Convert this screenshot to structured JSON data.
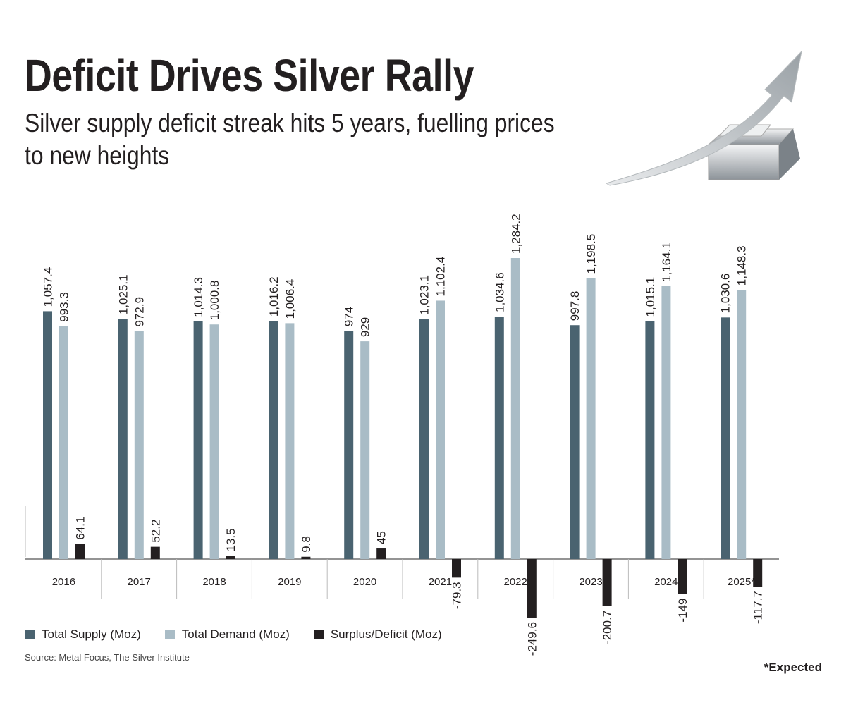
{
  "title": "Deficit Drives Silver Rally",
  "subtitle": "Silver supply deficit streak hits 5 years, fuelling prices to new heights",
  "source": "Source: Metal Focus, The Silver Institute",
  "footnote": "*Expected",
  "illustration": "silver-bars-with-rising-arrow",
  "colors": {
    "supply": "#4a6370",
    "demand": "#a9bcc6",
    "deficit": "#231f20"
  },
  "chart_data": {
    "type": "bar",
    "categories": [
      "2016",
      "2017",
      "2018",
      "2019",
      "2020",
      "2021",
      "2022",
      "2023",
      "2024",
      "2025*"
    ],
    "series": [
      {
        "name": "Total Supply (Moz)",
        "values": [
          1057.4,
          1025.1,
          1014.3,
          1016.2,
          974,
          1023.1,
          1034.6,
          997.8,
          1015.1,
          1030.6
        ],
        "labels": [
          "1,057.4",
          "1,025.1",
          "1,014.3",
          "1,016.2",
          "974",
          "1,023.1",
          "1,034.6",
          "997.8",
          "1,015.1",
          "1,030.6"
        ]
      },
      {
        "name": "Total Demand (Moz)",
        "values": [
          993.3,
          972.9,
          1000.8,
          1006.4,
          929,
          1102.4,
          1284.2,
          1198.5,
          1164.1,
          1148.3
        ],
        "labels": [
          "993.3",
          "972.9",
          "1,000.8",
          "1,006.4",
          "929",
          "1,102.4",
          "1,284.2",
          "1,198.5",
          "1,164.1",
          "1,148.3"
        ]
      },
      {
        "name": "Surplus/Deficit (Moz)",
        "values": [
          64.1,
          52.2,
          13.5,
          9.8,
          45,
          -79.3,
          -249.6,
          -200.7,
          -149,
          -117.7
        ],
        "labels": [
          "64.1",
          "52.2",
          "13.5",
          "9.8",
          "45",
          "-79.3",
          "-249.6",
          "-200.7",
          "-149",
          "-117.7"
        ]
      }
    ],
    "legend": "bottom-left",
    "grid": false,
    "data_labels": true
  }
}
